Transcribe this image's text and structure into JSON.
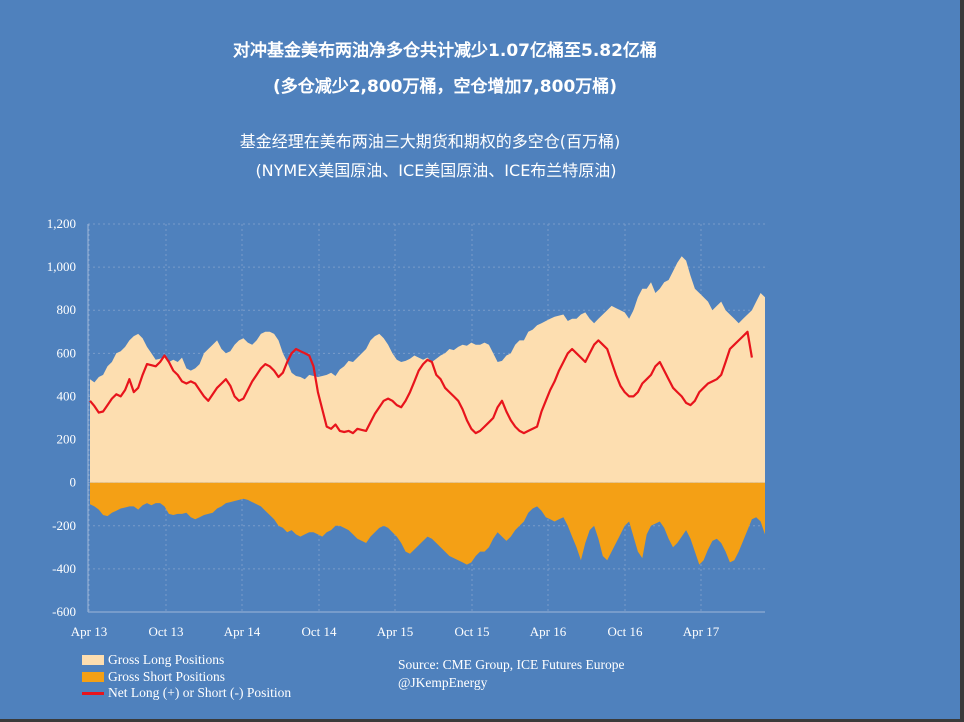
{
  "title_line1": "对冲基金美布两油净多仓共计减少1.07亿桶至5.82亿桶",
  "title_line2": "(多仓减少2,800万桶，空仓增加7,800万桶)",
  "subtitle_line1": "基金经理在美布两油三大期货和期权的多空仓(百万桶)",
  "subtitle_line2": "(NYMEX美国原油、ICE美国原油、ICE布兰特原油)",
  "source_line1": "Source:  CME Group, ICE Futures Europe",
  "source_line2": "@JKempEnergy",
  "colors": {
    "background": "#4f81bd",
    "long_fill": "#fddeb0",
    "short_fill": "#f4a015",
    "net_line": "#e8141c"
  },
  "chart_data": {
    "type": "area",
    "yticks": [
      "1,200",
      "1,000",
      "800",
      "600",
      "400",
      "200",
      "0",
      "-200",
      "-400",
      "-600"
    ],
    "ytick_values": [
      1200,
      1000,
      800,
      600,
      400,
      200,
      0,
      -200,
      -400,
      -600
    ],
    "xticks": [
      "Apr 13",
      "Oct 13",
      "Apr 14",
      "Oct 14",
      "Apr 15",
      "Oct 15",
      "Apr 16",
      "Oct 16",
      "Apr 17"
    ],
    "ylim": [
      -600,
      1200
    ],
    "grid": true,
    "legend_position": "bottom-left",
    "series": [
      {
        "name": "Gross Long Positions",
        "style": "area-above-zero",
        "values": [
          480,
          465,
          490,
          500,
          540,
          560,
          600,
          610,
          630,
          660,
          680,
          690,
          670,
          630,
          600,
          570,
          575,
          585,
          560,
          570,
          560,
          580,
          530,
          520,
          530,
          550,
          600,
          620,
          640,
          660,
          620,
          600,
          610,
          640,
          660,
          670,
          650,
          640,
          660,
          690,
          700,
          700,
          690,
          660,
          600,
          560,
          510,
          495,
          490,
          480,
          500,
          495,
          490,
          495,
          500,
          510,
          495,
          525,
          540,
          565,
          560,
          580,
          600,
          620,
          660,
          680,
          690,
          670,
          640,
          600,
          570,
          560,
          565,
          575,
          590,
          580,
          570,
          580,
          560,
          575,
          590,
          600,
          620,
          615,
          630,
          640,
          635,
          650,
          640,
          640,
          650,
          640,
          600,
          560,
          565,
          590,
          600,
          640,
          660,
          660,
          700,
          710,
          730,
          740,
          750,
          760,
          770,
          775,
          780,
          750,
          760,
          760,
          780,
          790,
          760,
          740,
          760,
          780,
          800,
          820,
          810,
          800,
          790,
          760,
          800,
          860,
          900,
          900,
          930,
          880,
          900,
          930,
          940,
          980,
          1020,
          1050,
          1030,
          960,
          900,
          880,
          860,
          840,
          800,
          820,
          840,
          800,
          780,
          760,
          740,
          760,
          780,
          800,
          840,
          880,
          860
        ]
      },
      {
        "name": "Gross Short Positions",
        "style": "area-below-zero",
        "values": [
          -100,
          -110,
          -125,
          -150,
          -155,
          -140,
          -130,
          -120,
          -115,
          -110,
          -110,
          -125,
          -105,
          -95,
          -105,
          -95,
          -95,
          -110,
          -145,
          -150,
          -145,
          -145,
          -140,
          -160,
          -170,
          -160,
          -150,
          -145,
          -140,
          -120,
          -110,
          -95,
          -90,
          -85,
          -80,
          -75,
          -80,
          -90,
          -100,
          -110,
          -130,
          -150,
          -170,
          -200,
          -210,
          -230,
          -220,
          -240,
          -250,
          -240,
          -230,
          -230,
          -240,
          -250,
          -230,
          -220,
          -200,
          -200,
          -210,
          -220,
          -240,
          -260,
          -270,
          -280,
          -250,
          -230,
          -210,
          -200,
          -210,
          -230,
          -250,
          -280,
          -320,
          -330,
          -310,
          -290,
          -270,
          -250,
          -260,
          -280,
          -300,
          -320,
          -340,
          -350,
          -360,
          -370,
          -380,
          -370,
          -340,
          -320,
          -320,
          -300,
          -260,
          -230,
          -250,
          -270,
          -250,
          -220,
          -200,
          -180,
          -140,
          -120,
          -110,
          -130,
          -160,
          -170,
          -180,
          -170,
          -160,
          -200,
          -250,
          -300,
          -360,
          -280,
          -220,
          -200,
          -260,
          -340,
          -360,
          -320,
          -280,
          -240,
          -200,
          -180,
          -250,
          -320,
          -350,
          -240,
          -200,
          -190,
          -180,
          -210,
          -260,
          -300,
          -280,
          -250,
          -220,
          -260,
          -320,
          -380,
          -360,
          -310,
          -270,
          -260,
          -280,
          -320,
          -370,
          -360,
          -320,
          -270,
          -220,
          -170,
          -160,
          -180,
          -240
        ]
      },
      {
        "name": "Net Long (+) or Short (-) Position",
        "style": "line",
        "values": [
          380,
          355,
          325,
          330,
          360,
          390,
          410,
          400,
          430,
          480,
          420,
          440,
          500,
          550,
          545,
          540,
          560,
          590,
          560,
          520,
          500,
          470,
          460,
          470,
          460,
          430,
          400,
          380,
          410,
          440,
          460,
          480,
          450,
          400,
          380,
          390,
          430,
          470,
          500,
          530,
          550,
          540,
          520,
          490,
          510,
          560,
          600,
          620,
          610,
          600,
          590,
          540,
          420,
          340,
          260,
          250,
          270,
          240,
          235,
          240,
          230,
          250,
          245,
          240,
          280,
          320,
          350,
          380,
          390,
          380,
          360,
          350,
          380,
          420,
          470,
          520,
          550,
          570,
          560,
          500,
          480,
          440,
          420,
          400,
          380,
          340,
          290,
          250,
          230,
          240,
          260,
          280,
          300,
          350,
          380,
          330,
          290,
          260,
          240,
          230,
          240,
          250,
          260,
          330,
          380,
          430,
          470,
          520,
          560,
          600,
          620,
          600,
          580,
          560,
          600,
          640,
          660,
          640,
          620,
          560,
          500,
          450,
          420,
          400,
          400,
          420,
          460,
          480,
          500,
          540,
          560,
          520,
          480,
          440,
          420,
          400,
          370,
          360,
          380,
          420,
          440,
          460,
          470,
          480,
          500,
          560,
          620,
          640,
          660,
          680,
          700,
          580
        ]
      }
    ]
  }
}
